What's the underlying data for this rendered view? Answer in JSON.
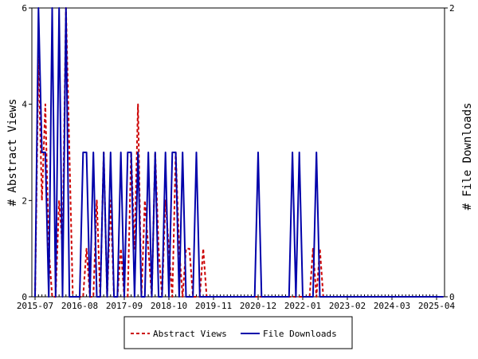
{
  "chart_data": {
    "type": "line",
    "ylabel": "# Abstract Views",
    "y2label": "# File Downloads",
    "x_tick_labels": [
      "2015-07",
      "2016-08",
      "2017-09",
      "2018-10",
      "2019-11",
      "2020-12",
      "2022-01",
      "2023-02",
      "2024-03",
      "2025-04"
    ],
    "ylim": [
      0,
      6
    ],
    "y_ticks": [
      0,
      2,
      4,
      6
    ],
    "y2lim": [
      0,
      2
    ],
    "y2_ticks": [
      0,
      2
    ],
    "grid": false,
    "legend_position": "bottom-center",
    "colors": {
      "views": "#cc0000",
      "downloads": "#0000aa"
    },
    "series": [
      {
        "name": "Abstract Views",
        "axis": "left",
        "style": "dashed",
        "x": [
          "2015-07",
          "2015-08",
          "2015-09",
          "2015-10",
          "2015-11",
          "2015-12",
          "2016-01",
          "2016-02",
          "2016-03",
          "2016-04",
          "2016-05",
          "2016-06",
          "2016-07",
          "2016-08",
          "2016-09",
          "2016-10",
          "2016-11",
          "2016-12",
          "2017-01",
          "2017-02",
          "2017-03",
          "2017-04",
          "2017-05",
          "2017-06",
          "2017-07",
          "2017-08",
          "2017-09",
          "2017-10",
          "2017-11",
          "2017-12",
          "2018-01",
          "2018-02",
          "2018-03",
          "2018-04",
          "2018-05",
          "2018-06",
          "2018-07",
          "2018-08",
          "2018-09",
          "2018-10",
          "2018-11",
          "2018-12",
          "2019-01",
          "2019-02",
          "2019-03",
          "2019-04",
          "2019-05",
          "2019-06",
          "2019-07",
          "2019-08",
          "2019-09",
          "2019-10",
          "2019-11",
          "2019-12",
          "2020-01",
          "2020-02",
          "2020-03",
          "2020-04",
          "2020-05",
          "2020-06",
          "2020-07",
          "2020-08",
          "2020-09",
          "2020-10",
          "2020-11",
          "2020-12",
          "2021-01",
          "2021-02",
          "2021-03",
          "2021-04",
          "2021-05",
          "2021-06",
          "2021-07",
          "2021-08",
          "2021-09",
          "2021-10",
          "2021-11",
          "2021-12",
          "2022-01",
          "2022-02",
          "2022-03",
          "2022-04",
          "2022-05",
          "2022-06",
          "2022-07",
          "2022-08",
          "2022-09",
          "2022-10",
          "2022-11",
          "2022-12",
          "2023-01",
          "2023-02",
          "2023-03",
          "2023-04",
          "2023-05",
          "2023-06",
          "2023-07",
          "2023-08",
          "2023-09",
          "2023-10",
          "2023-11",
          "2023-12",
          "2024-01",
          "2024-02",
          "2024-03",
          "2024-04",
          "2024-05",
          "2024-06",
          "2024-07",
          "2024-08",
          "2024-09",
          "2024-10",
          "2024-11",
          "2024-12",
          "2025-01",
          "2025-02",
          "2025-03",
          "2025-04",
          "2025-05",
          "2025-06"
        ],
        "values": [
          0,
          5,
          2,
          4,
          1,
          0,
          0,
          2,
          1,
          6,
          3,
          0,
          0,
          0,
          0,
          1,
          0,
          0,
          2,
          0,
          3,
          0,
          2,
          0,
          0,
          1,
          0,
          0,
          3,
          1,
          4,
          0,
          2,
          1,
          0,
          3,
          1,
          0,
          2,
          1,
          0,
          3,
          1,
          0,
          1,
          1,
          0,
          0,
          0,
          1,
          0,
          0,
          0,
          0,
          0,
          0,
          0,
          0,
          0,
          0,
          0,
          0,
          0,
          0,
          0,
          0,
          0,
          0,
          0,
          0,
          0,
          0,
          0,
          0,
          0,
          0,
          0,
          0,
          0,
          0,
          0,
          1,
          0,
          1,
          0,
          0,
          0,
          0,
          0,
          0,
          0,
          0,
          0,
          0,
          0,
          0,
          0,
          0,
          0,
          0,
          0,
          0,
          0,
          0,
          0,
          0,
          0,
          0,
          0,
          0,
          0,
          0,
          0,
          0,
          0,
          0,
          0,
          0,
          0,
          0
        ]
      },
      {
        "name": "File Downloads",
        "axis": "right",
        "style": "solid",
        "x": [
          "2015-07",
          "2015-08",
          "2015-09",
          "2015-10",
          "2015-11",
          "2015-12",
          "2016-01",
          "2016-02",
          "2016-03",
          "2016-04",
          "2016-05",
          "2016-06",
          "2016-07",
          "2016-08",
          "2016-09",
          "2016-10",
          "2016-11",
          "2016-12",
          "2017-01",
          "2017-02",
          "2017-03",
          "2017-04",
          "2017-05",
          "2017-06",
          "2017-07",
          "2017-08",
          "2017-09",
          "2017-10",
          "2017-11",
          "2017-12",
          "2018-01",
          "2018-02",
          "2018-03",
          "2018-04",
          "2018-05",
          "2018-06",
          "2018-07",
          "2018-08",
          "2018-09",
          "2018-10",
          "2018-11",
          "2018-12",
          "2019-01",
          "2019-02",
          "2019-03",
          "2019-04",
          "2019-05",
          "2019-06",
          "2019-07",
          "2019-08",
          "2019-09",
          "2019-10",
          "2019-11",
          "2019-12",
          "2020-01",
          "2020-02",
          "2020-03",
          "2020-04",
          "2020-05",
          "2020-06",
          "2020-07",
          "2020-08",
          "2020-09",
          "2020-10",
          "2020-11",
          "2020-12",
          "2021-01",
          "2021-02",
          "2021-03",
          "2021-04",
          "2021-05",
          "2021-06",
          "2021-07",
          "2021-08",
          "2021-09",
          "2021-10",
          "2021-11",
          "2021-12",
          "2022-01",
          "2022-02",
          "2022-03",
          "2022-04",
          "2022-05",
          "2022-06",
          "2022-07",
          "2022-08",
          "2022-09",
          "2022-10",
          "2022-11",
          "2022-12",
          "2023-01",
          "2023-02",
          "2023-03",
          "2023-04",
          "2023-05",
          "2023-06",
          "2023-07",
          "2023-08",
          "2023-09",
          "2023-10",
          "2023-11",
          "2023-12",
          "2024-01",
          "2024-02",
          "2024-03",
          "2024-04",
          "2024-05",
          "2024-06",
          "2024-07",
          "2024-08",
          "2024-09",
          "2024-10",
          "2024-11",
          "2024-12",
          "2025-01",
          "2025-02",
          "2025-03",
          "2025-04",
          "2025-05",
          "2025-06"
        ],
        "values": [
          0,
          2,
          1,
          1,
          0,
          2,
          0,
          2,
          0,
          2,
          0,
          0,
          0,
          0,
          1,
          1,
          0,
          1,
          0,
          0,
          1,
          0,
          1,
          0,
          0,
          1,
          0,
          1,
          1,
          0,
          1,
          0,
          0,
          1,
          0,
          1,
          0,
          0,
          1,
          0,
          1,
          1,
          0,
          1,
          0,
          0,
          0,
          1,
          0,
          0,
          0,
          0,
          0,
          0,
          0,
          0,
          0,
          0,
          0,
          0,
          0,
          0,
          0,
          0,
          0,
          1,
          0,
          0,
          0,
          0,
          0,
          0,
          0,
          0,
          0,
          1,
          0,
          1,
          0,
          0,
          0,
          0,
          1,
          0,
          0,
          0,
          0,
          0,
          0,
          0,
          0,
          0,
          0,
          0,
          0,
          0,
          0,
          0,
          0,
          0,
          0,
          0,
          0,
          0,
          0,
          0,
          0,
          0,
          0,
          0,
          0,
          0,
          0,
          0,
          0,
          0,
          0,
          0,
          0,
          0
        ]
      }
    ]
  }
}
